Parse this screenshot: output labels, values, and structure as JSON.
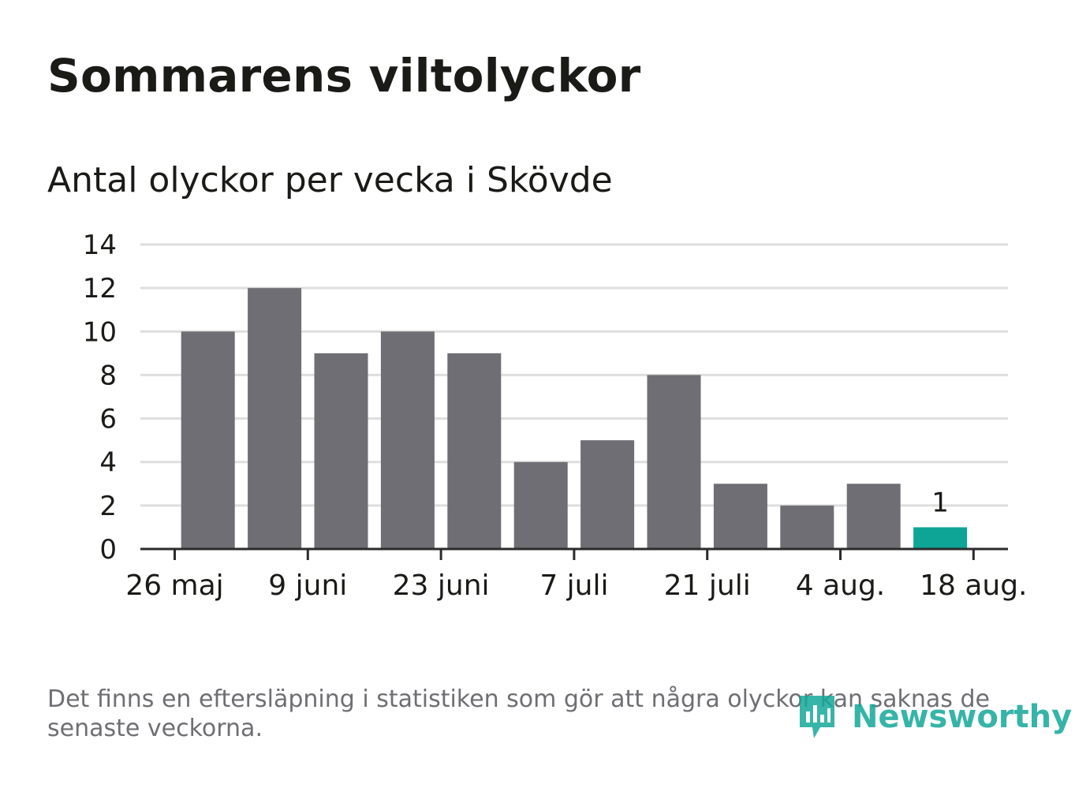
{
  "title": "Sommarens viltolyckor",
  "subtitle": "Antal olyckor per vecka i Skövde",
  "footnote": "Det finns en eftersläpning i statistiken som gör att några olyckor kan saknas de senaste veckorna.",
  "brand": {
    "name": "Newsworthy",
    "icon": "newsworthy-logo-icon",
    "color": "#14a89a"
  },
  "colors": {
    "bar": "#6f6e74",
    "highlight": "#0ea597",
    "grid": "#dedede",
    "axis": "#2b2b2b",
    "text": "#1a1a17"
  },
  "chart_data": {
    "type": "bar",
    "title": "Antal olyckor per vecka i Skövde",
    "xlabel": "",
    "ylabel": "",
    "ylim": [
      0,
      14
    ],
    "yticks": [
      0,
      2,
      4,
      6,
      8,
      10,
      12,
      14
    ],
    "grid": true,
    "x_ticks": [
      {
        "label": "26 maj",
        "index": -0.5
      },
      {
        "label": "9 juni",
        "index": 1.5
      },
      {
        "label": "23 juni",
        "index": 3.5
      },
      {
        "label": "7 juli",
        "index": 5.5
      },
      {
        "label": "21 juli",
        "index": 7.5
      },
      {
        "label": "4 aug.",
        "index": 9.5
      },
      {
        "label": "18 aug.",
        "index": 11.5
      }
    ],
    "series": [
      {
        "values": [
          10,
          12,
          9,
          10,
          9,
          4,
          5,
          8,
          3,
          2,
          3,
          1
        ]
      }
    ],
    "highlight_index": 11,
    "data_labels": [
      {
        "index": 11,
        "text": "1"
      }
    ]
  }
}
